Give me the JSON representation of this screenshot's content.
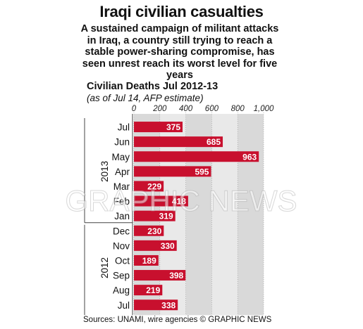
{
  "title": "Iraqi civilian casualties",
  "subtitle": "A sustained campaign of militant attacks in Iraq, a country still trying to reach a stable power-sharing compromise, has seen unrest reach its worst level for five years",
  "section_title": "Civilian Deaths Jul 2012-13",
  "section_note": "(as of Jul 14, AFP estimate)",
  "source": "Sources: UNAMI, wire agencies © GRAPHIC NEWS",
  "watermark": "GRAPHIC NEWS",
  "colors": {
    "bar": "#c8102e",
    "panel": "#d9d9d9",
    "panel_light": "#e9e9e9",
    "text": "#111111"
  },
  "chart_data": {
    "type": "bar",
    "orientation": "horizontal",
    "categories": [
      "Jul",
      "Jun",
      "May",
      "Apr",
      "Mar",
      "Feb",
      "Jan",
      "Dec",
      "Nov",
      "Oct",
      "Sep",
      "Aug",
      "Jul"
    ],
    "values": [
      375,
      685,
      963,
      595,
      229,
      418,
      319,
      230,
      330,
      189,
      398,
      219,
      338
    ],
    "value_labels": [
      "375",
      "685",
      "963",
      "595",
      "229",
      "418",
      "319",
      "230",
      "330",
      "189",
      "398",
      "219",
      "338"
    ],
    "groups": [
      {
        "label": "2013",
        "categories": [
          "Jul",
          "Jun",
          "May",
          "Apr",
          "Mar",
          "Feb",
          "Jan"
        ]
      },
      {
        "label": "2012",
        "categories": [
          "Dec",
          "Nov",
          "Oct",
          "Sep",
          "Aug",
          "Jul"
        ]
      }
    ],
    "xticks": [
      0,
      200,
      400,
      600,
      800,
      1000
    ],
    "xtick_labels": [
      "0",
      "200",
      "400",
      "600",
      "800",
      "1,000"
    ],
    "xlim": [
      0,
      1000
    ],
    "grid": true
  }
}
